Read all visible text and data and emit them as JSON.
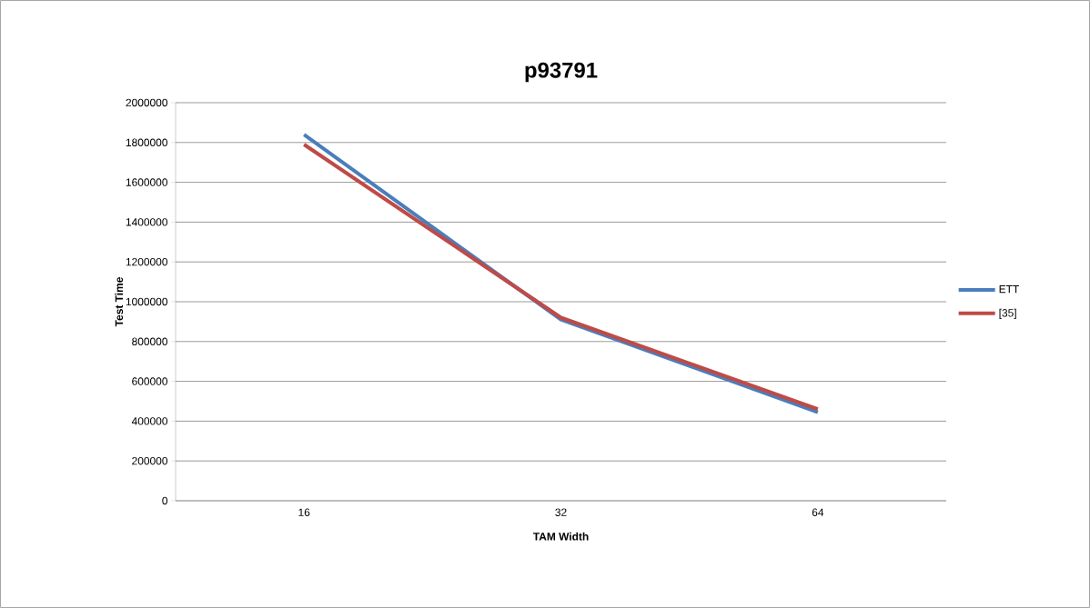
{
  "chart_data": {
    "type": "line",
    "title": "p93791",
    "xlabel": "TAM Width",
    "ylabel": "Test Time",
    "categories": [
      "16",
      "32",
      "64"
    ],
    "series": [
      {
        "name": "ETT",
        "color": "#4a7ebb",
        "values": [
          1840000,
          910000,
          445000
        ]
      },
      {
        "name": "[35]",
        "color": "#be4b48",
        "values": [
          1790000,
          920000,
          460000
        ]
      }
    ],
    "ylim": [
      0,
      2000000
    ],
    "yticks": [
      0,
      200000,
      400000,
      600000,
      800000,
      1000000,
      1200000,
      1400000,
      1600000,
      1800000,
      2000000
    ],
    "grid": "y",
    "legend": "right",
    "marker": "none",
    "line_style": "solid"
  }
}
